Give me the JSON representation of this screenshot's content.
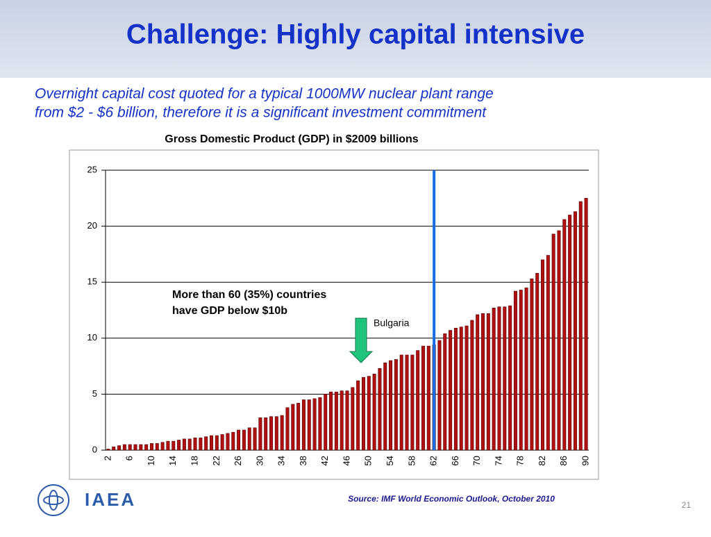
{
  "slide": {
    "title": "Challenge: Highly capital intensive",
    "subtitle_lines": [
      "Overnight capital cost quoted for a typical 1000MW nuclear plant range",
      "from $2 - $6 billion, therefore it is a significant investment commitment"
    ],
    "source": "Source: IMF World Economic Outlook, October 2010",
    "logo": "IAEA",
    "page_number": "21"
  },
  "chart_data": {
    "type": "bar",
    "title": "Gross Domestic Product (GDP) in $2009 billions",
    "categories": [
      "2",
      null,
      null,
      null,
      "6",
      null,
      null,
      null,
      "10",
      null,
      null,
      null,
      "14",
      null,
      null,
      null,
      "18",
      null,
      null,
      null,
      "22",
      null,
      null,
      null,
      "26",
      null,
      null,
      null,
      "30",
      null,
      null,
      null,
      "34",
      null,
      null,
      null,
      "38",
      null,
      null,
      null,
      "42",
      null,
      null,
      null,
      "46",
      null,
      null,
      null,
      "50",
      null,
      null,
      null,
      "54",
      null,
      null,
      null,
      "58",
      null,
      null,
      null,
      "62",
      null,
      null,
      null,
      "66",
      null,
      null,
      null,
      "70",
      null,
      null,
      null,
      "74",
      null,
      null,
      null,
      "78",
      null,
      null,
      null,
      "82",
      null,
      null,
      null,
      "86",
      null,
      null,
      null,
      "90"
    ],
    "values": [
      0.1,
      0.3,
      0.4,
      0.5,
      0.5,
      0.5,
      0.5,
      0.5,
      0.6,
      0.6,
      0.7,
      0.8,
      0.8,
      0.9,
      1.0,
      1.0,
      1.1,
      1.1,
      1.2,
      1.3,
      1.3,
      1.4,
      1.5,
      1.6,
      1.8,
      1.8,
      2.0,
      2.0,
      2.9,
      2.9,
      3.0,
      3.0,
      3.1,
      3.8,
      4.1,
      4.2,
      4.5,
      4.5,
      4.6,
      4.7,
      5.0,
      5.2,
      5.2,
      5.3,
      5.3,
      5.6,
      6.2,
      6.5,
      6.6,
      6.8,
      7.3,
      7.8,
      8.0,
      8.1,
      8.5,
      8.5,
      8.5,
      8.9,
      9.3,
      9.3,
      9.4,
      9.8,
      10.4,
      10.7,
      10.9,
      11.0,
      11.1,
      11.6,
      12.1,
      12.2,
      12.2,
      12.7,
      12.8,
      12.8,
      12.9,
      14.2,
      14.3,
      14.5,
      15.3,
      15.8,
      17.0,
      17.4,
      19.3,
      19.6,
      20.6,
      21.0,
      21.3,
      22.2,
      22.5
    ],
    "color": "#b01010",
    "ylim": [
      0,
      25
    ],
    "yticks": [
      0,
      5,
      10,
      15,
      20,
      25
    ],
    "grid": true,
    "annotation_lines": [
      "More than 60 (35%) countries",
      "have GDP below $10b"
    ],
    "highlight": {
      "category": "62",
      "label": "Bulgaria",
      "color": "#1a6ee0"
    }
  }
}
